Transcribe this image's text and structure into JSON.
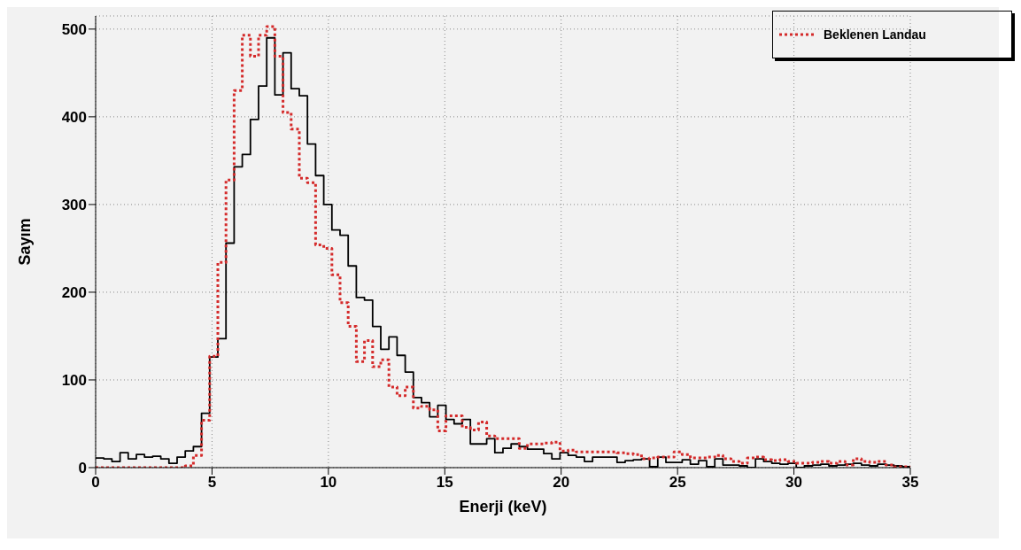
{
  "chart_data": {
    "type": "histogram",
    "xlabel": "Enerji (keV)",
    "ylabel": "Sayım",
    "bins": [
      0,
      0.35,
      0.7,
      1.05,
      1.4,
      1.75,
      2.1,
      2.45,
      2.8,
      3.15,
      3.5,
      3.85,
      4.2,
      4.55,
      4.9,
      5.25,
      5.6,
      5.95,
      6.3,
      6.65,
      7,
      7.35,
      7.7,
      8.05,
      8.4,
      8.75,
      9.1,
      9.45,
      9.8,
      10.15,
      10.5,
      10.85,
      11.2,
      11.55,
      11.9,
      12.25,
      12.6,
      12.95,
      13.3,
      13.65,
      14,
      14.35,
      14.7,
      15.05,
      15.4,
      15.75,
      16.1,
      16.45,
      16.8,
      17.15,
      17.5,
      17.85,
      18.2,
      18.55,
      18.9,
      19.25,
      19.6,
      19.95,
      20.3,
      20.65,
      21,
      21.35,
      21.7,
      22.05,
      22.4,
      22.75,
      23.1,
      23.45,
      23.8,
      24.15,
      24.5,
      24.85,
      25.2,
      25.55,
      25.9,
      26.25,
      26.6,
      26.95,
      27.3,
      27.65,
      28,
      28.35,
      28.7,
      29.05,
      29.4,
      29.75,
      30.1,
      30.45,
      30.8,
      31.15,
      31.5,
      31.85,
      32.2,
      32.55,
      32.9,
      33.25,
      33.6,
      33.95,
      34.3,
      34.65,
      35
    ],
    "series": [
      {
        "color": "#000000",
        "line_style": "solid",
        "values": [
          11,
          10,
          7,
          17,
          10,
          15,
          12,
          13,
          10,
          5,
          12,
          19,
          24,
          62,
          126,
          147,
          256,
          343,
          357,
          397,
          435,
          490,
          425,
          473,
          432,
          424,
          369,
          333,
          300,
          271,
          265,
          230,
          194,
          191,
          161,
          135,
          149,
          128,
          109,
          80,
          74,
          58,
          71,
          55,
          50,
          55,
          27,
          27,
          33,
          17,
          22,
          27,
          24,
          21,
          21,
          16,
          10,
          17,
          14,
          12,
          7,
          12,
          12,
          12,
          6,
          8,
          9,
          10,
          1,
          12,
          6,
          6,
          9,
          4,
          8,
          1,
          10,
          3,
          3,
          2,
          0,
          10,
          7,
          5,
          4,
          5,
          0,
          2,
          3,
          4,
          2,
          3,
          4,
          5,
          3,
          2,
          4,
          3,
          2,
          1
        ]
      },
      {
        "name": "Beklenen Landau",
        "color": "#d42a2a",
        "line_style": "dotted",
        "values": [
          0,
          0,
          0,
          0,
          0,
          0,
          0,
          0,
          0,
          0,
          0,
          2,
          14,
          54,
          127,
          234,
          328,
          430,
          493,
          469,
          493,
          503,
          469,
          405,
          386,
          330,
          325,
          254,
          250,
          220,
          188,
          161,
          121,
          145,
          115,
          123,
          92,
          82,
          92,
          68,
          70,
          66,
          42,
          59,
          59,
          46,
          43,
          52,
          36,
          33,
          33,
          33,
          22,
          27,
          27,
          28,
          29,
          19,
          20,
          18,
          18,
          18,
          18,
          18,
          17,
          16,
          15,
          10,
          11,
          12,
          12,
          18,
          15,
          11,
          11,
          12,
          14,
          10,
          7,
          5,
          11,
          12,
          9,
          8,
          9,
          7,
          5,
          5,
          6,
          7,
          5,
          7,
          3,
          10,
          7,
          6,
          7,
          3,
          1,
          1
        ]
      }
    ],
    "xlim": [
      0,
      35
    ],
    "xticks": [
      0,
      5,
      10,
      15,
      20,
      25,
      30,
      35
    ],
    "ylim": [
      0,
      515
    ],
    "yticks": [
      0,
      100,
      200,
      300,
      400,
      500
    ],
    "grid": true,
    "legend": "top right"
  }
}
